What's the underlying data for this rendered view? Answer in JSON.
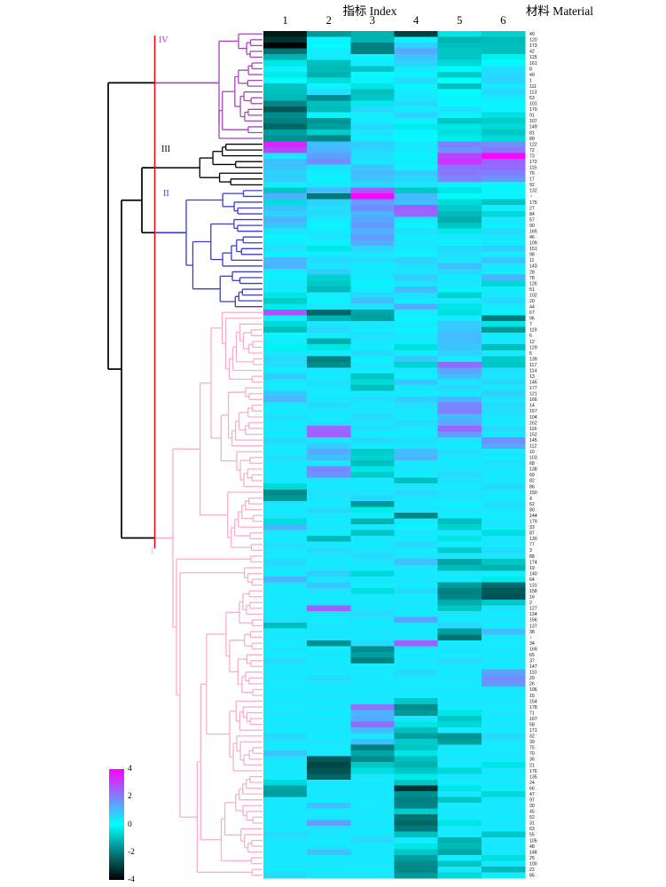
{
  "header": {
    "index_label": "指标 Index",
    "material_label": "材料 Material"
  },
  "legend": {
    "ticks": [
      "4",
      "2",
      "0",
      "-2",
      "-4"
    ]
  },
  "chart_data": {
    "type": "heatmap",
    "col_axis_label": "指标 Index",
    "row_axis_label": "材料 Material",
    "columns": [
      "1",
      "2",
      "3",
      "4",
      "5",
      "6"
    ],
    "value_range": [
      -4,
      4
    ],
    "legend_ticks": [
      4,
      2,
      0,
      -2,
      -4
    ],
    "colormap": {
      "max": "#FF00FF",
      "mid": "#00FFFF",
      "min": "#000000"
    },
    "cut_line_color": "#E30613",
    "clusters": [
      {
        "name": "IV",
        "color": "#A546B9",
        "rows": [
          0,
          18
        ]
      },
      {
        "name": "III",
        "color": "#000000",
        "rows": [
          19,
          26
        ]
      },
      {
        "name": "II",
        "color": "#3C3CD2",
        "rows": [
          27,
          47
        ]
      },
      {
        "name": "I",
        "color": "#FAAFC8",
        "rows": [
          48,
          145
        ]
      }
    ],
    "rows": [
      "40",
      "120",
      "173",
      "42",
      "125",
      "161",
      "8",
      "49",
      "1",
      "111",
      "113",
      "53",
      "101",
      "170",
      "91",
      "107",
      "149",
      "81",
      "89",
      "122",
      "72",
      "73",
      "172",
      "115",
      "76",
      "17",
      "92",
      "132",
      "♂",
      "175",
      "27",
      "84",
      "57",
      "90",
      "165",
      "46",
      "109",
      "151",
      "98",
      "11",
      "143",
      "28",
      "78",
      "126",
      "51",
      "102",
      "20",
      "44",
      "67",
      "96",
      "7",
      "119",
      "6",
      "12",
      "129",
      "5",
      "139",
      "117",
      "114",
      "13",
      "146",
      "177",
      "121",
      "166",
      "14",
      "157",
      "104",
      "162",
      "116",
      "152",
      "145",
      "112",
      "10",
      "103",
      "68",
      "138",
      "60",
      "82",
      "86",
      "150",
      "4",
      "62",
      "80",
      "144",
      "179",
      "33",
      "87",
      "130",
      "77",
      "3",
      "88",
      "174",
      "19",
      "140",
      "64",
      "131",
      "158",
      "16",
      "2",
      "127",
      "134",
      "156",
      "137",
      "38",
      "♀",
      "34",
      "169",
      "65",
      "37",
      "147",
      "110",
      "29",
      "26",
      "106",
      "15",
      "154",
      "178",
      "71",
      "167",
      "58",
      "171",
      "32",
      "39",
      "75",
      "70",
      "36",
      "21",
      "176",
      "135",
      "24",
      "66",
      "47",
      "97",
      "30",
      "45",
      "52",
      "31",
      "63",
      "55",
      "105",
      "48",
      "148",
      "25",
      "100",
      "22",
      "85"
    ],
    "values": [
      [
        -3.6,
        -1.6,
        -1.2,
        -3.0,
        -0.4,
        -0.7
      ],
      [
        -3.2,
        0.2,
        -1.2,
        0.2,
        -1.2,
        -1.1
      ],
      [
        -3.9,
        0.1,
        -2.0,
        0.7,
        -1.0,
        -1.0
      ],
      [
        -2.2,
        0.3,
        -2.0,
        1.4,
        -0.9,
        -1.0
      ],
      [
        -1.2,
        0.3,
        0.2,
        0.9,
        -0.9,
        -0.2
      ],
      [
        -0.4,
        -1.0,
        0.3,
        0.7,
        -0.6,
        0.1
      ],
      [
        0.2,
        -1.1,
        -0.9,
        0.3,
        -0.1,
        0.5
      ],
      [
        -0.3,
        -1.2,
        0.1,
        0.2,
        -0.8,
        0.6
      ],
      [
        0.1,
        -0.5,
        0.2,
        0.6,
        0.0,
        0.7
      ],
      [
        -0.9,
        0.2,
        -0.4,
        0.2,
        -1.0,
        0.3
      ],
      [
        -1.0,
        0.5,
        -1.0,
        0.3,
        0.1,
        0.6
      ],
      [
        -1.1,
        -1.8,
        -0.9,
        0.4,
        0.2,
        0.3
      ],
      [
        -1.9,
        -1.0,
        -0.3,
        0.6,
        0.1,
        0.2
      ],
      [
        -2.6,
        -1.1,
        0.6,
        0.3,
        0.5,
        0.2
      ],
      [
        -1.8,
        0.2,
        0.3,
        0.7,
        0.2,
        -0.5
      ],
      [
        -2.0,
        -1.7,
        0.3,
        0.2,
        -0.9,
        -0.8
      ],
      [
        -2.4,
        -1.5,
        0.6,
        -0.3,
        -0.4,
        -0.6
      ],
      [
        -1.5,
        -0.8,
        0.4,
        0.2,
        -0.5,
        -0.9
      ],
      [
        -1.7,
        -1.9,
        0.3,
        0.1,
        -0.3,
        -0.6
      ],
      [
        3.4,
        1.0,
        0.8,
        0.4,
        2.0,
        1.8
      ],
      [
        2.9,
        1.2,
        0.6,
        0.3,
        1.7,
        2.1
      ],
      [
        0.4,
        1.5,
        0.5,
        0.2,
        3.0,
        3.9
      ],
      [
        1.0,
        1.8,
        0.4,
        0.3,
        3.2,
        2.4
      ],
      [
        0.9,
        0.4,
        0.9,
        0.2,
        2.2,
        2.3
      ],
      [
        0.7,
        0.3,
        1.1,
        0.8,
        2.1,
        2.0
      ],
      [
        0.8,
        0.2,
        0.9,
        0.6,
        1.9,
        1.6
      ],
      [
        0.3,
        0.4,
        0.6,
        0.4,
        0.2,
        0.1
      ],
      [
        -0.9,
        1.1,
        2.6,
        -0.9,
        -0.4,
        0.2
      ],
      [
        1.3,
        -2.1,
        3.9,
        1.1,
        0.1,
        0.2
      ],
      [
        -0.5,
        0.7,
        1.5,
        1.0,
        -0.6,
        -0.9
      ],
      [
        1.0,
        0.5,
        1.8,
        2.5,
        -0.8,
        0.3
      ],
      [
        0.7,
        0.6,
        1.2,
        2.4,
        -1.1,
        -0.6
      ],
      [
        1.2,
        0.3,
        1.4,
        0.3,
        -1.3,
        0.4
      ],
      [
        0.9,
        0.2,
        1.6,
        0.2,
        -0.9,
        0.2
      ],
      [
        0.4,
        0.3,
        1.2,
        0.5,
        -0.3,
        0.6
      ],
      [
        0.2,
        0.4,
        1.5,
        0.3,
        0.4,
        0.4
      ],
      [
        0.3,
        0.2,
        1.3,
        0.4,
        0.2,
        0.3
      ],
      [
        0.5,
        -0.4,
        0.6,
        0.3,
        0.6,
        0.8
      ],
      [
        0.2,
        0.3,
        0.4,
        0.2,
        0.5,
        0.3
      ],
      [
        1.1,
        0.6,
        0.5,
        0.7,
        0.4,
        0.9
      ],
      [
        1.2,
        0.4,
        0.3,
        0.5,
        1.0,
        0.4
      ],
      [
        0.3,
        0.8,
        0.4,
        0.4,
        0.6,
        0.3
      ],
      [
        0.2,
        -0.7,
        0.3,
        0.8,
        0.3,
        1.2
      ],
      [
        0.4,
        -0.9,
        0.2,
        0.4,
        0.4,
        -0.6
      ],
      [
        0.3,
        -1.1,
        0.3,
        1.1,
        0.2,
        0.3
      ],
      [
        -0.4,
        0.3,
        0.6,
        0.5,
        -0.7,
        0.4
      ],
      [
        -0.8,
        0.2,
        1.0,
        0.3,
        0.4,
        0.6
      ],
      [
        -0.3,
        0.4,
        0.4,
        1.3,
        -0.4,
        0.3
      ],
      [
        2.8,
        -2.4,
        -1.4,
        0.3,
        -0.5,
        0.2
      ],
      [
        0.3,
        -1.2,
        -1.5,
        0.2,
        0.3,
        -2.1
      ],
      [
        -0.6,
        0.4,
        0.4,
        0.3,
        0.8,
        -0.4
      ],
      [
        -1.0,
        0.6,
        0.3,
        0.2,
        0.9,
        -1.6
      ],
      [
        0.2,
        0.3,
        0.5,
        0.4,
        1.1,
        0.3
      ],
      [
        0.3,
        -1.3,
        0.4,
        0.3,
        1.0,
        0.4
      ],
      [
        -0.2,
        -0.4,
        0.3,
        -0.5,
        0.9,
        -1.0
      ],
      [
        0.4,
        0.3,
        0.6,
        0.3,
        0.7,
        0.4
      ],
      [
        0.6,
        -2.0,
        0.2,
        0.9,
        0.3,
        -0.8
      ],
      [
        0.5,
        -1.8,
        0.4,
        -0.7,
        2.3,
        -0.9
      ],
      [
        0.3,
        0.4,
        0.3,
        0.4,
        1.4,
        0.5
      ],
      [
        0.8,
        0.3,
        -0.9,
        0.2,
        1.0,
        0.4
      ],
      [
        0.4,
        0.5,
        -0.6,
        0.9,
        0.4,
        0.6
      ],
      [
        0.3,
        0.4,
        -1.0,
        0.4,
        0.6,
        0.4
      ],
      [
        0.9,
        0.3,
        0.4,
        0.3,
        0.4,
        0.7
      ],
      [
        1.1,
        0.4,
        0.5,
        0.8,
        1.2,
        0.4
      ],
      [
        0.4,
        0.6,
        0.3,
        0.5,
        1.9,
        0.6
      ],
      [
        0.3,
        0.4,
        0.4,
        0.4,
        2.0,
        0.5
      ],
      [
        0.5,
        0.3,
        0.6,
        0.3,
        1.1,
        0.4
      ],
      [
        0.3,
        0.5,
        0.4,
        0.6,
        1.3,
        0.3
      ],
      [
        0.4,
        2.4,
        0.5,
        0.4,
        2.4,
        0.6
      ],
      [
        0.3,
        2.5,
        0.3,
        0.3,
        1.5,
        0.4
      ],
      [
        0.6,
        0.4,
        0.6,
        0.5,
        0.4,
        1.8
      ],
      [
        0.4,
        0.8,
        0.3,
        0.4,
        0.3,
        1.4
      ],
      [
        0.3,
        1.3,
        -0.8,
        1.0,
        0.5,
        0.4
      ],
      [
        0.5,
        1.0,
        -0.7,
        1.2,
        0.4,
        0.3
      ],
      [
        0.4,
        0.4,
        -1.0,
        0.3,
        0.3,
        0.5
      ],
      [
        0.3,
        1.9,
        -0.4,
        0.4,
        0.4,
        0.4
      ],
      [
        0.4,
        1.7,
        -0.8,
        0.3,
        0.6,
        0.3
      ],
      [
        0.3,
        0.4,
        0.4,
        -1.0,
        0.4,
        0.4
      ],
      [
        -0.6,
        0.3,
        0.3,
        0.4,
        0.3,
        0.6
      ],
      [
        -1.8,
        0.5,
        0.4,
        0.6,
        0.5,
        0.4
      ],
      [
        -1.6,
        0.4,
        0.6,
        0.4,
        0.4,
        0.3
      ],
      [
        0.4,
        0.3,
        -1.6,
        0.3,
        0.2,
        0.5
      ],
      [
        0.3,
        0.6,
        -0.3,
        0.4,
        0.4,
        0.4
      ],
      [
        0.4,
        0.4,
        0.3,
        -1.9,
        0.3,
        0.3
      ],
      [
        -0.5,
        0.3,
        -1.2,
        0.3,
        -1.0,
        0.4
      ],
      [
        1.2,
        0.4,
        0.4,
        0.2,
        -0.7,
        0.3
      ],
      [
        0.4,
        0.3,
        -0.9,
        0.4,
        0.4,
        -0.5
      ],
      [
        0.3,
        -1.1,
        0.4,
        0.3,
        -0.4,
        0.4
      ],
      [
        0.5,
        0.4,
        0.3,
        0.6,
        0.3,
        0.3
      ],
      [
        0.4,
        0.6,
        0.4,
        0.3,
        -0.8,
        0.6
      ],
      [
        0.3,
        0.4,
        0.6,
        0.4,
        0.4,
        0.4
      ],
      [
        0.6,
        0.3,
        0.4,
        1.0,
        -1.4,
        -0.9
      ],
      [
        0.4,
        0.4,
        0.3,
        0.4,
        -1.1,
        -1.2
      ],
      [
        0.3,
        0.8,
        -0.6,
        0.3,
        0.4,
        0.3
      ],
      [
        1.2,
        0.4,
        0.4,
        0.4,
        0.3,
        -0.3
      ],
      [
        0.4,
        0.9,
        0.3,
        0.3,
        -1.6,
        -2.4
      ],
      [
        0.3,
        0.4,
        -0.5,
        0.6,
        -2.0,
        -2.6
      ],
      [
        0.4,
        0.3,
        0.4,
        0.3,
        -1.9,
        -2.7
      ],
      [
        0.3,
        0.4,
        0.3,
        0.4,
        -1.3,
        -0.9
      ],
      [
        0.4,
        2.5,
        0.4,
        0.3,
        -0.9,
        0.4
      ],
      [
        0.3,
        0.4,
        0.6,
        0.4,
        0.4,
        0.3
      ],
      [
        0.5,
        0.3,
        0.4,
        1.5,
        0.3,
        0.4
      ],
      [
        -1.0,
        0.4,
        0.3,
        0.4,
        0.6,
        0.3
      ],
      [
        0.3,
        0.3,
        0.4,
        0.3,
        -1.5,
        1.0
      ],
      [
        0.4,
        0.4,
        0.3,
        0.4,
        -2.2,
        0.4
      ],
      [
        0.3,
        -1.7,
        0.6,
        2.5,
        0.3,
        0.3
      ],
      [
        0.4,
        0.3,
        -1.8,
        0.4,
        0.4,
        0.4
      ],
      [
        0.3,
        0.4,
        -1.5,
        0.3,
        0.3,
        0.3
      ],
      [
        0.6,
        0.3,
        -2.0,
        0.4,
        0.6,
        0.4
      ],
      [
        0.4,
        0.4,
        0.3,
        0.3,
        0.4,
        0.3
      ],
      [
        0.3,
        0.3,
        0.4,
        0.6,
        0.3,
        1.5
      ],
      [
        0.4,
        0.6,
        0.3,
        0.4,
        0.4,
        1.8
      ],
      [
        0.3,
        0.4,
        0.4,
        0.3,
        0.3,
        1.7
      ],
      [
        0.4,
        0.3,
        0.3,
        0.4,
        0.4,
        0.4
      ],
      [
        0.3,
        0.4,
        0.4,
        0.3,
        0.3,
        0.3
      ],
      [
        0.4,
        0.3,
        0.3,
        -0.9,
        0.4,
        0.4
      ],
      [
        0.3,
        0.4,
        2.2,
        -1.8,
        0.3,
        0.3
      ],
      [
        0.4,
        0.3,
        1.2,
        -1.6,
        -0.4,
        0.4
      ],
      [
        0.3,
        0.4,
        1.3,
        0.4,
        -0.9,
        0.3
      ],
      [
        0.4,
        0.3,
        2.3,
        -0.4,
        -0.6,
        0.4
      ],
      [
        0.3,
        0.4,
        1.1,
        -1.0,
        0.3,
        0.3
      ],
      [
        0.6,
        0.3,
        0.4,
        -1.5,
        -1.7,
        0.6
      ],
      [
        0.4,
        0.4,
        1.0,
        -0.8,
        -1.5,
        0.4
      ],
      [
        0.3,
        0.3,
        -2.0,
        -0.9,
        0.4,
        0.3
      ],
      [
        0.9,
        0.4,
        -1.4,
        -0.4,
        0.3,
        0.4
      ],
      [
        0.4,
        -2.6,
        -1.8,
        -1.0,
        0.4,
        0.3
      ],
      [
        0.3,
        -2.9,
        -0.9,
        -1.2,
        0.3,
        -0.4
      ],
      [
        0.4,
        -2.7,
        -0.5,
        -0.9,
        -0.6,
        0.4
      ],
      [
        0.3,
        -2.4,
        0.4,
        -0.3,
        0.4,
        0.3
      ],
      [
        -0.6,
        0.4,
        0.3,
        -0.9,
        0.3,
        0.4
      ],
      [
        -1.4,
        0.3,
        0.4,
        -3.2,
        -0.4,
        0.3
      ],
      [
        -1.5,
        0.4,
        0.3,
        -1.8,
        0.4,
        -0.6
      ],
      [
        0.4,
        0.3,
        0.4,
        -2.0,
        -0.9,
        0.4
      ],
      [
        0.3,
        1.0,
        0.3,
        -1.9,
        0.3,
        0.3
      ],
      [
        0.4,
        0.3,
        0.4,
        -0.8,
        0.4,
        0.4
      ],
      [
        0.3,
        0.4,
        0.3,
        -2.2,
        0.3,
        0.3
      ],
      [
        0.4,
        1.5,
        0.4,
        -2.4,
        -0.4,
        0.4
      ],
      [
        0.3,
        0.4,
        0.3,
        -2.1,
        0.4,
        0.3
      ],
      [
        0.6,
        0.4,
        0.4,
        -1.0,
        0.3,
        -0.9
      ],
      [
        0.4,
        0.3,
        0.6,
        0.3,
        -1.2,
        0.4
      ],
      [
        0.3,
        0.4,
        0.3,
        -0.4,
        -1.1,
        0.3
      ],
      [
        0.4,
        1.0,
        0.4,
        -0.9,
        -1.4,
        0.4
      ],
      [
        0.3,
        0.3,
        0.3,
        -1.5,
        0.3,
        -0.5
      ],
      [
        0.4,
        0.4,
        0.4,
        -1.8,
        -0.9,
        0.4
      ],
      [
        0.3,
        0.3,
        0.3,
        -1.9,
        0.4,
        -1.1
      ],
      [
        0.6,
        0.4,
        0.4,
        -1.6,
        -0.6,
        0.3
      ]
    ]
  }
}
